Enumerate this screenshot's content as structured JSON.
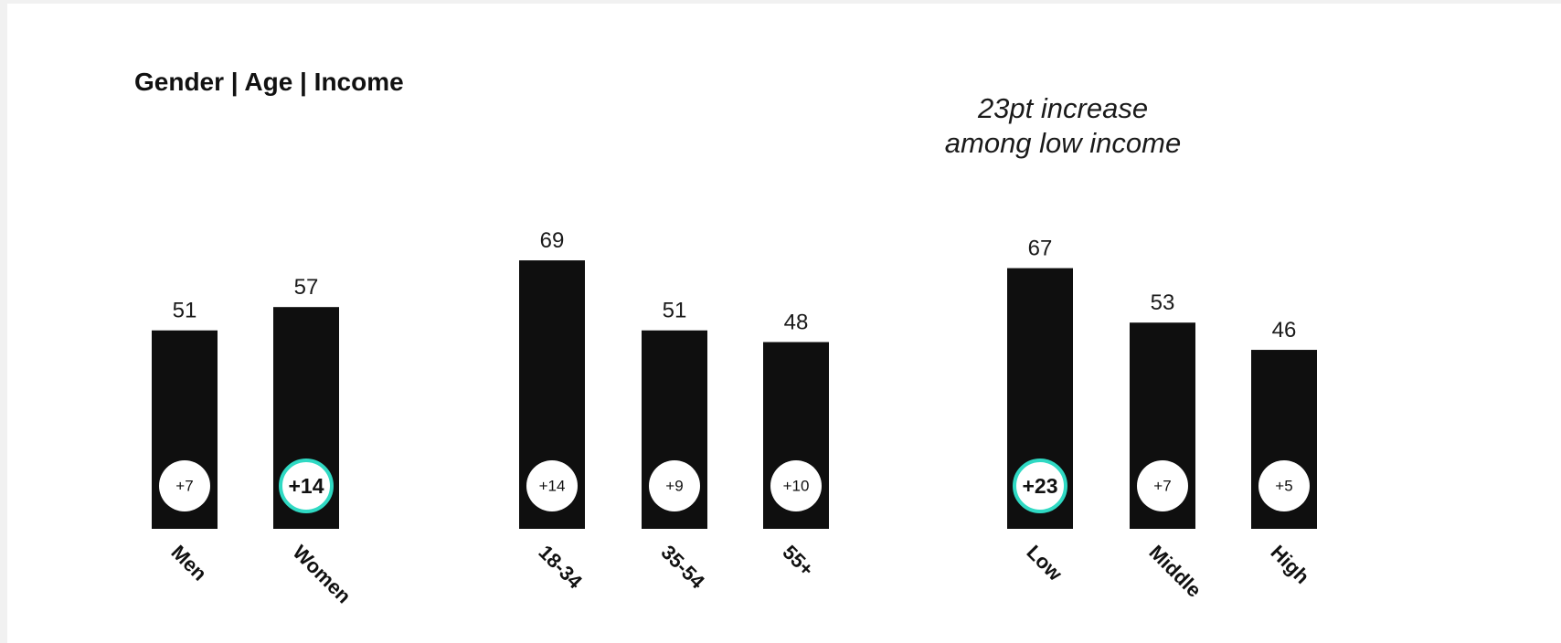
{
  "chart_data": {
    "type": "bar",
    "title": "Gender | Age | Income",
    "annotation": [
      "23pt increase",
      "among low income"
    ],
    "groups": [
      {
        "name": "Gender",
        "categories": [
          "Men",
          "Women"
        ],
        "values": [
          51,
          57
        ],
        "changes": [
          "+7",
          "+14"
        ],
        "highlight": [
          false,
          true
        ]
      },
      {
        "name": "Age",
        "categories": [
          "18-34",
          "35-54",
          "55+"
        ],
        "values": [
          69,
          51,
          48
        ],
        "changes": [
          "+14",
          "+9",
          "+10"
        ],
        "highlight": [
          false,
          false,
          false
        ]
      },
      {
        "name": "Income",
        "categories": [
          "Low",
          "Middle",
          "High"
        ],
        "values": [
          67,
          53,
          46
        ],
        "changes": [
          "+23",
          "+7",
          "+5"
        ],
        "highlight": [
          true,
          false,
          false
        ]
      }
    ],
    "ylim": [
      0,
      100
    ],
    "grid": false,
    "colors": {
      "bar": "#0f0f0f",
      "badge_fill": "#ffffff",
      "highlight_ring": "#2fd9c3"
    }
  }
}
